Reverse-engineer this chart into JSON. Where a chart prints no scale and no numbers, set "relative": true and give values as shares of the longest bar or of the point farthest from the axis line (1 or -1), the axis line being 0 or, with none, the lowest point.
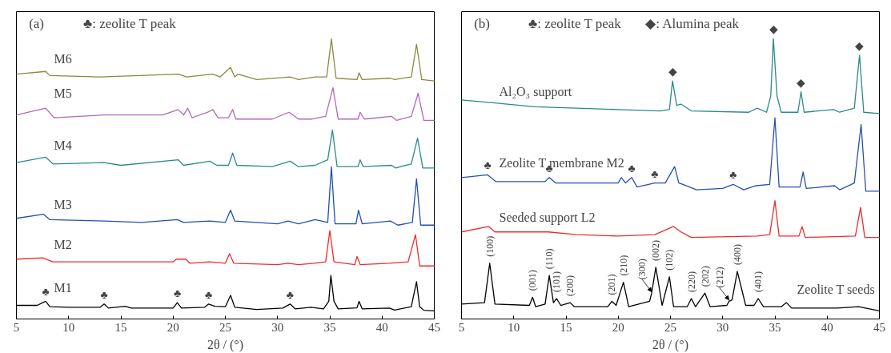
{
  "chart_data": [
    {
      "type": "line",
      "relative": true,
      "xlabel": "2θ / (°)",
      "xlim": [
        5,
        45
      ],
      "xticks": [
        5,
        10,
        15,
        20,
        25,
        30,
        35,
        40,
        45
      ],
      "annotations": [
        "(a)",
        "♣: zeolite T peak",
        {
          "text": "♣",
          "x": 7.8,
          "y": 0.035
        },
        {
          "text": "♣",
          "x": 13.4,
          "y": 0.025
        },
        {
          "text": "♣",
          "x": 20.4,
          "y": 0.03
        },
        {
          "text": "♣",
          "x": 23.4,
          "y": 0.025
        },
        {
          "text": "♣",
          "x": 31.2,
          "y": 0.025
        }
      ],
      "series": [
        {
          "name": "M1",
          "color": "#000000",
          "x": [
            5,
            7,
            7.5,
            7.8,
            8.2,
            10,
            13,
            13.4,
            13.8,
            15.4,
            16,
            20,
            20.4,
            20.8,
            23,
            23.4,
            24,
            25,
            25.5,
            25.9,
            28,
            30.5,
            31.2,
            31.7,
            33.2,
            34.4,
            34.9,
            35.1,
            35.4,
            35.8,
            37.6,
            37.8,
            38.1,
            40.7,
            41.2,
            42.8,
            43.3,
            43.6,
            44,
            45
          ],
          "values": [
            0.02,
            0.02,
            0.03,
            0.035,
            0.015,
            0.013,
            0.013,
            0.025,
            0.01,
            0.017,
            0.01,
            0.01,
            0.03,
            0.01,
            0.013,
            0.025,
            0.017,
            0.015,
            0.057,
            0.013,
            0.005,
            0.01,
            0.025,
            0.007,
            0.013,
            0.007,
            0.035,
            0.13,
            0.035,
            0.007,
            0.011,
            0.035,
            0.007,
            0.01,
            0.003,
            0.015,
            0.107,
            0.015,
            0.002,
            0
          ]
        },
        {
          "name": "M2",
          "color": "#ee2c2c",
          "x": [
            5,
            7.5,
            8.5,
            13.3,
            15,
            20,
            20.3,
            21.2,
            21.6,
            23.5,
            25,
            25.4,
            25.8,
            30,
            31,
            32,
            33.5,
            34.6,
            35,
            35.4,
            37.4,
            37.6,
            37.9,
            40.7,
            42.5,
            43.2,
            43.6,
            45
          ],
          "values": [
            0.19,
            0.195,
            0.18,
            0.18,
            0.18,
            0.18,
            0.19,
            0.19,
            0.175,
            0.18,
            0.175,
            0.21,
            0.175,
            0.17,
            0.175,
            0.17,
            0.175,
            0.18,
            0.295,
            0.18,
            0.17,
            0.2,
            0.17,
            0.175,
            0.18,
            0.28,
            0.165,
            0.165
          ]
        },
        {
          "name": "M3",
          "color": "#1f4fb4",
          "x": [
            5,
            7.6,
            8.2,
            13.4,
            17,
            20.4,
            21,
            23.5,
            25,
            25.5,
            25.9,
            30,
            31,
            32,
            33.6,
            34.8,
            35.15,
            35.5,
            37.5,
            37.75,
            38.1,
            40.8,
            41.5,
            42.9,
            43.3,
            43.7,
            45
          ],
          "values": [
            0.34,
            0.355,
            0.335,
            0.33,
            0.325,
            0.335,
            0.325,
            0.33,
            0.325,
            0.37,
            0.33,
            0.32,
            0.33,
            0.32,
            0.335,
            0.325,
            0.53,
            0.32,
            0.32,
            0.37,
            0.32,
            0.33,
            0.315,
            0.325,
            0.485,
            0.315,
            0.315
          ]
        },
        {
          "name": "M4",
          "color": "#2a8c86",
          "x": [
            5,
            7.8,
            8.5,
            13.4,
            15,
            20.5,
            21,
            23.5,
            24.2,
            25.3,
            25.7,
            26.1,
            29.5,
            31.2,
            32,
            33.6,
            34.8,
            35.25,
            35.7,
            37.7,
            37.9,
            38.2,
            40.9,
            41.3,
            42.8,
            43.4,
            43.9,
            45
          ],
          "values": [
            0.545,
            0.565,
            0.54,
            0.545,
            0.535,
            0.555,
            0.535,
            0.55,
            0.535,
            0.535,
            0.58,
            0.535,
            0.53,
            0.55,
            0.53,
            0.535,
            0.555,
            0.665,
            0.53,
            0.53,
            0.555,
            0.53,
            0.535,
            0.525,
            0.54,
            0.635,
            0.525,
            0.525
          ]
        },
        {
          "name": "M5",
          "color": "#b266c0",
          "x": [
            5,
            7.8,
            8.6,
            13.4,
            15.5,
            19,
            20.5,
            21,
            21.4,
            21.8,
            23.3,
            23.8,
            24.3,
            25.3,
            25.7,
            26,
            29.5,
            31.1,
            32,
            33.3,
            34.6,
            35.3,
            35.8,
            37.7,
            37.9,
            38.3,
            40.9,
            41.4,
            42.8,
            43.45,
            44,
            45
          ],
          "values": [
            0.72,
            0.745,
            0.71,
            0.72,
            0.72,
            0.72,
            0.74,
            0.72,
            0.745,
            0.71,
            0.73,
            0.74,
            0.71,
            0.71,
            0.74,
            0.705,
            0.705,
            0.73,
            0.705,
            0.705,
            0.715,
            0.82,
            0.705,
            0.705,
            0.73,
            0.705,
            0.715,
            0.7,
            0.715,
            0.8,
            0.7,
            0.7
          ]
        },
        {
          "name": "M6",
          "color": "#8a8a3c",
          "x": [
            5,
            7.8,
            8.2,
            13,
            20.5,
            21.3,
            23.8,
            24.5,
            25.5,
            25.9,
            26.2,
            28,
            31.2,
            32,
            33.6,
            34.7,
            35.15,
            35.6,
            37.6,
            37.8,
            38.1,
            40.8,
            41.2,
            42.8,
            43.3,
            43.8,
            45
          ],
          "values": [
            0.87,
            0.88,
            0.865,
            0.86,
            0.87,
            0.86,
            0.87,
            0.86,
            0.895,
            0.86,
            0.87,
            0.85,
            0.86,
            0.85,
            0.86,
            0.86,
            1.0,
            0.855,
            0.85,
            0.875,
            0.85,
            0.855,
            0.85,
            0.86,
            0.98,
            0.85,
            0.845
          ]
        }
      ]
    },
    {
      "type": "line",
      "relative": true,
      "xlabel": "2θ / (°)",
      "xlim": [
        5,
        45
      ],
      "xticks": [
        5,
        10,
        15,
        20,
        25,
        30,
        35,
        40,
        45
      ],
      "annotations": [
        "(b)",
        "♣: zeolite T peak",
        "◆: Alumina peak",
        {
          "text": "◆",
          "x": 25.2,
          "y": 0.845
        },
        {
          "text": "◆",
          "x": 34.85,
          "y": 1.0
        },
        {
          "text": "◆",
          "x": 37.5,
          "y": 0.805
        },
        {
          "text": "◆",
          "x": 43.1,
          "y": 0.94
        },
        {
          "text": "♣",
          "x": 7.5,
          "y": 0.5
        },
        {
          "text": "♣",
          "x": 13.4,
          "y": 0.49
        },
        {
          "text": "♣",
          "x": 21.3,
          "y": 0.49
        },
        {
          "text": "♣",
          "x": 23.5,
          "y": 0.47
        },
        {
          "text": "♣",
          "x": 31,
          "y": 0.465
        },
        {
          "text": "(100)",
          "x": 7.7,
          "y": 0.175
        },
        {
          "text": "(001)",
          "x": 11.8,
          "y": 0.05
        },
        {
          "text": "(110)",
          "x": 13.4,
          "y": 0.13
        },
        {
          "text": "(101)",
          "x": 14.1,
          "y": 0.045
        },
        {
          "text": "(200)",
          "x": 15.4,
          "y": 0.03
        },
        {
          "text": "(201)",
          "x": 19.4,
          "y": 0.035
        },
        {
          "text": "(210)",
          "x": 20.5,
          "y": 0.105
        },
        {
          "text": "(300)",
          "x": 23.2,
          "y": 0.065
        },
        {
          "text": "(002)",
          "x": 23.6,
          "y": 0.16
        },
        {
          "text": "(102)",
          "x": 24.9,
          "y": 0.125
        },
        {
          "text": "(220)",
          "x": 27,
          "y": 0.045
        },
        {
          "text": "(202)",
          "x": 28.3,
          "y": 0.065
        },
        {
          "text": "(212)",
          "x": 30.6,
          "y": 0.035
        },
        {
          "text": "(400)",
          "x": 31.4,
          "y": 0.145
        },
        {
          "text": "(401)",
          "x": 33.4,
          "y": 0.045
        }
      ],
      "series": [
        {
          "name": "Zeolite T seeds",
          "color": "#000000",
          "x": [
            5,
            7.2,
            7.7,
            8.2,
            11.5,
            11.8,
            12.1,
            13,
            13.4,
            13.8,
            14.1,
            14.5,
            15.4,
            15.8,
            19,
            19.4,
            19.8,
            20.5,
            21,
            23,
            23.2,
            23.6,
            24.2,
            24.9,
            25.3,
            26.6,
            27,
            27.4,
            28.3,
            28.8,
            30.4,
            30.6,
            30.9,
            31.4,
            32.2,
            33,
            33.4,
            33.9,
            35.6,
            36.1,
            36.6,
            41,
            43,
            45
          ],
          "values": [
            0.025,
            0.03,
            0.175,
            0.025,
            0.02,
            0.05,
            0.015,
            0.025,
            0.13,
            0.03,
            0.045,
            0.02,
            0.03,
            0.015,
            0.015,
            0.035,
            0.02,
            0.105,
            0.015,
            0.035,
            0.065,
            0.16,
            0.02,
            0.125,
            0.015,
            0.015,
            0.045,
            0.015,
            0.065,
            0.015,
            0.02,
            0.035,
            0.04,
            0.145,
            0.02,
            0.02,
            0.045,
            0.015,
            0.015,
            0.03,
            0.01,
            0.01,
            0.015,
            0
          ]
        },
        {
          "name": "Seeded support L2",
          "color": "#ee2c2c",
          "x": [
            5,
            7.6,
            8.2,
            13.3,
            16,
            20,
            23.5,
            25.3,
            26,
            27,
            33.3,
            34.5,
            35,
            35.4,
            37.3,
            37.6,
            37.9,
            42.7,
            43.2,
            43.6,
            45
          ],
          "values": [
            0.29,
            0.31,
            0.29,
            0.29,
            0.28,
            0.275,
            0.28,
            0.31,
            0.29,
            0.27,
            0.275,
            0.28,
            0.405,
            0.275,
            0.275,
            0.31,
            0.27,
            0.275,
            0.38,
            0.27,
            0.27
          ]
        },
        {
          "name": "Zeolite T membrane M2",
          "color": "#2450b0",
          "x": [
            5,
            7.5,
            8.3,
            13,
            13.4,
            14,
            20,
            20.3,
            20.7,
            21.3,
            21.8,
            23.5,
            24.5,
            25.4,
            25.8,
            26.2,
            27.5,
            30,
            31,
            32,
            33.2,
            34.5,
            35,
            35.4,
            37.4,
            37.7,
            38,
            40.7,
            41.2,
            42.6,
            43.25,
            43.7,
            45
          ],
          "values": [
            0.49,
            0.5,
            0.475,
            0.475,
            0.49,
            0.47,
            0.47,
            0.49,
            0.47,
            0.49,
            0.455,
            0.47,
            0.47,
            0.53,
            0.47,
            0.465,
            0.445,
            0.45,
            0.465,
            0.445,
            0.46,
            0.465,
            0.71,
            0.455,
            0.455,
            0.51,
            0.45,
            0.46,
            0.445,
            0.47,
            0.685,
            0.44,
            0.44
          ]
        },
        {
          "name": "Al₂O₃ support",
          "color": "#2a8a84",
          "x": [
            5,
            8,
            12,
            16,
            20,
            24,
            24.9,
            25.2,
            25.6,
            26,
            27,
            32.5,
            33.3,
            34.2,
            34.6,
            34.85,
            35.2,
            35.6,
            37.2,
            37.5,
            37.8,
            40.6,
            41.2,
            42.6,
            43.1,
            43.5,
            45
          ],
          "values": [
            0.775,
            0.765,
            0.75,
            0.745,
            0.74,
            0.735,
            0.74,
            0.845,
            0.755,
            0.76,
            0.735,
            0.73,
            0.745,
            0.73,
            0.79,
            1.0,
            0.79,
            0.73,
            0.73,
            0.805,
            0.73,
            0.74,
            0.73,
            0.745,
            0.94,
            0.73,
            0.725
          ]
        }
      ]
    }
  ]
}
